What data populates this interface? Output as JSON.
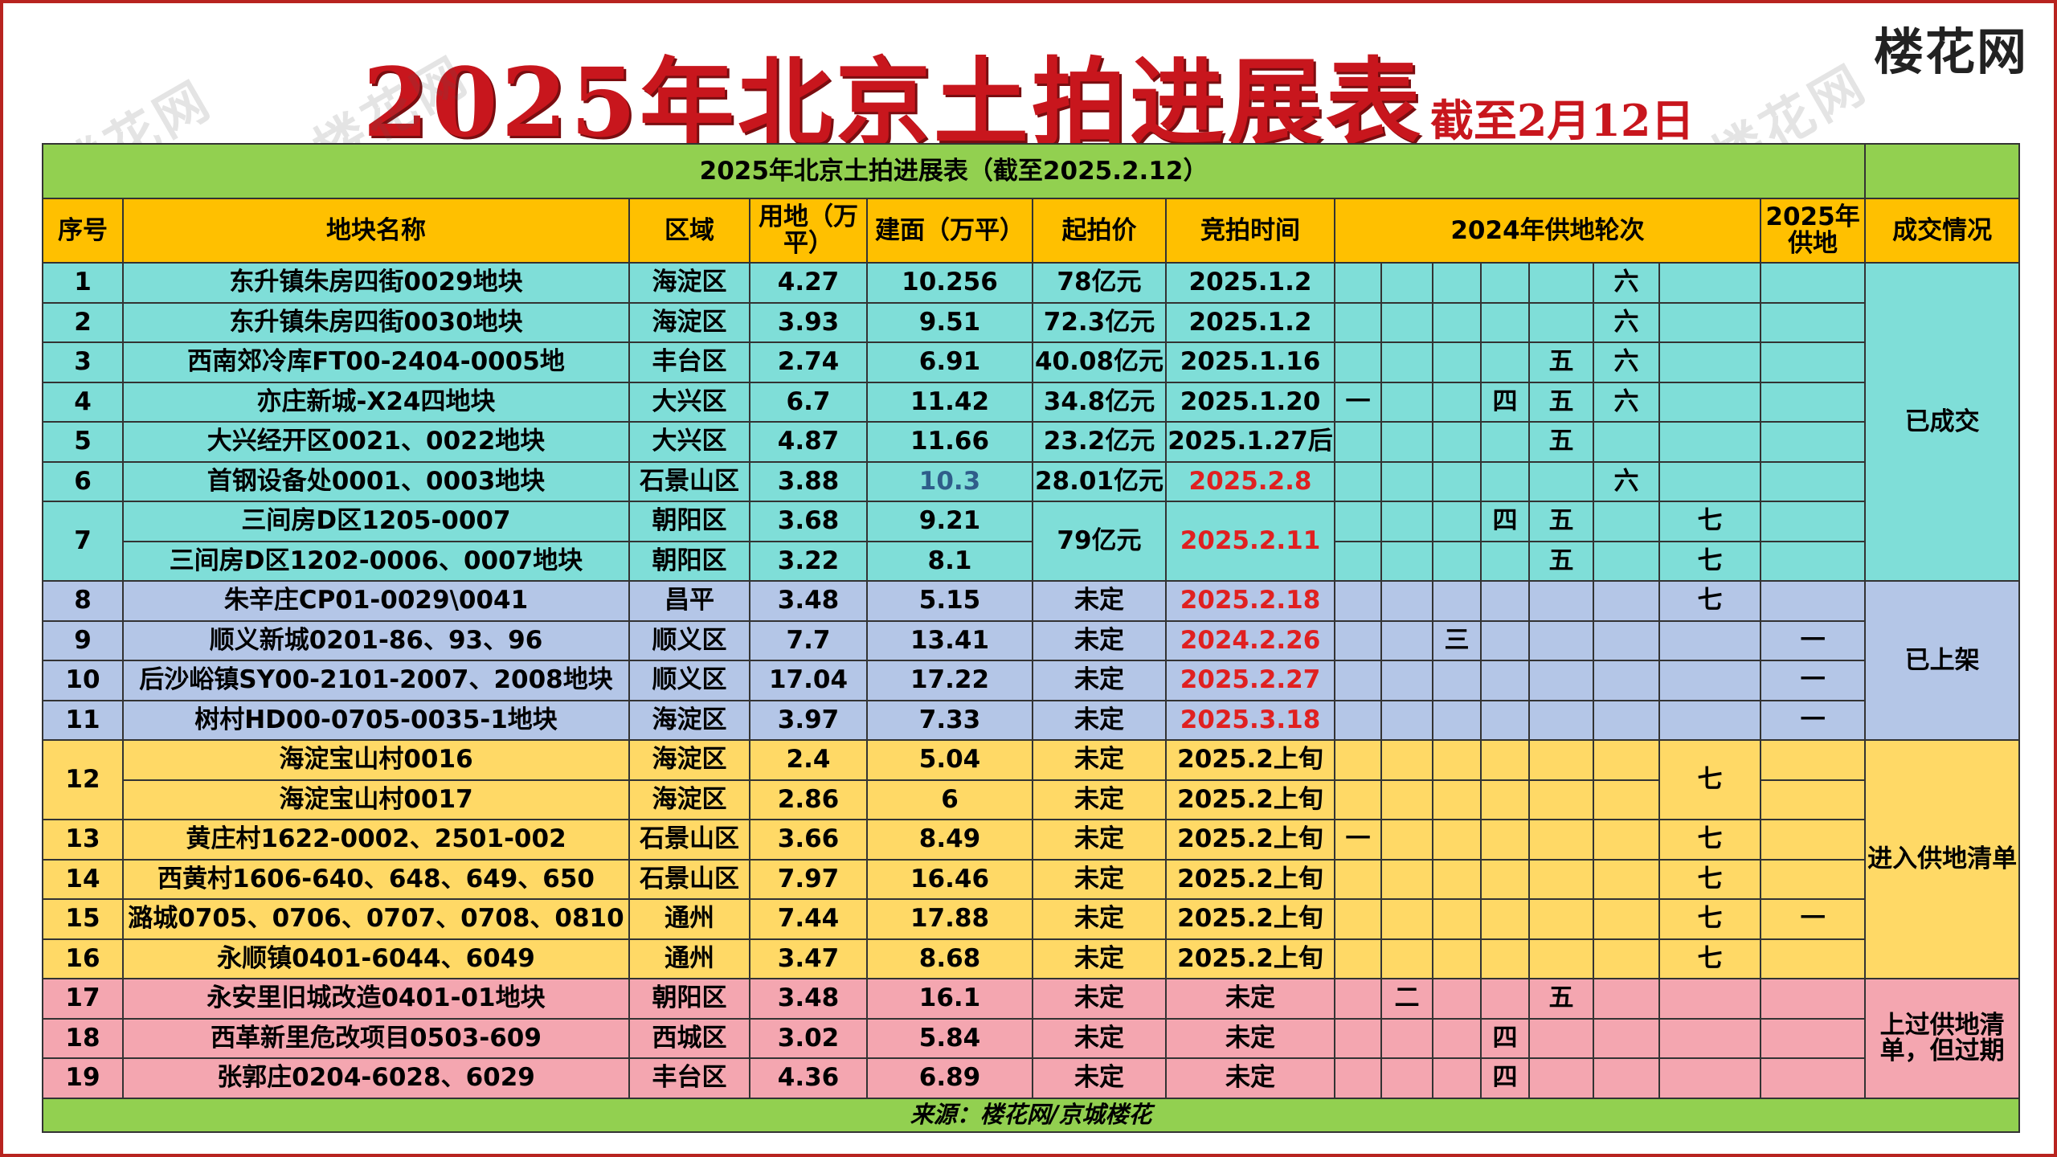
{
  "title": {
    "main": "2025年北京土拍进展表",
    "sub": "截至2月12日"
  },
  "brand": "楼花网",
  "table": {
    "caption": "2025年北京土拍进展表（截至2025.2.12）",
    "headers": {
      "no": "序号",
      "name": "地块名称",
      "district": "区域",
      "land_area": "用地（万平）",
      "build_area": "建面（万平）",
      "start_price": "起拍价",
      "auction_time": "竞拍时间",
      "supply_2024": "2024年供地轮次",
      "supply_2025": "2025年供地",
      "status": "成交情况"
    },
    "rows": [
      {
        "no": "1",
        "name": "东升镇朱房四街0029地块",
        "district": "海淀区",
        "land": "4.27",
        "build": "10.256",
        "price": "78亿元",
        "time": "2025.1.2",
        "r": [
          "",
          "",
          "",
          "",
          "",
          "六"
        ],
        "s25": ""
      },
      {
        "no": "2",
        "name": "东升镇朱房四街0030地块",
        "district": "海淀区",
        "land": "3.93",
        "build": "9.51",
        "price": "72.3亿元",
        "time": "2025.1.2",
        "r": [
          "",
          "",
          "",
          "",
          "",
          "六"
        ],
        "s25": ""
      },
      {
        "no": "3",
        "name": "西南郊冷库FT00-2404-0005地",
        "district": "丰台区",
        "land": "2.74",
        "build": "6.91",
        "price": "40.08亿元",
        "time": "2025.1.16",
        "r": [
          "",
          "",
          "",
          "",
          "五",
          "六"
        ],
        "s25": ""
      },
      {
        "no": "4",
        "name": "亦庄新城-X24四地块",
        "district": "大兴区",
        "land": "6.7",
        "build": "11.42",
        "price": "34.8亿元",
        "time": "2025.1.20",
        "r": [
          "一",
          "",
          "",
          "四",
          "五",
          "六"
        ],
        "s25": ""
      },
      {
        "no": "5",
        "name": "大兴经开区0021、0022地块",
        "district": "大兴区",
        "land": "4.87",
        "build": "11.66",
        "price": "23.2亿元",
        "time": "2025.1.27后",
        "r": [
          "",
          "",
          "",
          "",
          "五",
          ""
        ],
        "s25": ""
      },
      {
        "no": "6",
        "name": "首钢设备处0001、0003地块",
        "district": "石景山区",
        "land": "3.88",
        "build": "10.3",
        "price": "28.01亿元",
        "time": "2025.2.8",
        "r": [
          "",
          "",
          "",
          "",
          "",
          "六"
        ],
        "s25": ""
      },
      {
        "no": "7",
        "name": "三间房D区1205-0007",
        "district": "朝阳区",
        "land": "3.68",
        "build": "9.21",
        "price": "79亿元",
        "time": "2025.2.11",
        "r": [
          "",
          "",
          "",
          "四",
          "五",
          ""
        ],
        "r7": "七",
        "s25": ""
      },
      {
        "no": "",
        "name": "三间房D区1202-0006、0007地块",
        "district": "朝阳区",
        "land": "3.22",
        "build": "8.1",
        "price": "",
        "time": "",
        "r": [
          "",
          "",
          "",
          "",
          "五",
          ""
        ],
        "r7": "七",
        "s25": ""
      },
      {
        "no": "8",
        "name": "朱辛庄CP01-0029\\0041",
        "district": "昌平",
        "land": "3.48",
        "build": "5.15",
        "price": "未定",
        "time": "2025.2.18",
        "r": [
          "",
          "",
          "",
          "",
          "",
          ""
        ],
        "r7": "七",
        "s25": ""
      },
      {
        "no": "9",
        "name": "顺义新城0201-86、93、96",
        "district": "顺义区",
        "land": "7.7",
        "build": "13.41",
        "price": "未定",
        "time": "2024.2.26",
        "r": [
          "",
          "",
          "三",
          "",
          "",
          ""
        ],
        "r7": "",
        "s25": "一"
      },
      {
        "no": "10",
        "name": "后沙峪镇SY00-2101-2007、2008地块",
        "district": "顺义区",
        "land": "17.04",
        "build": "17.22",
        "price": "未定",
        "time": "2025.2.27",
        "r": [
          "",
          "",
          "",
          "",
          "",
          ""
        ],
        "r7": "",
        "s25": "一"
      },
      {
        "no": "11",
        "name": "树村HD00-0705-0035-1地块",
        "district": "海淀区",
        "land": "3.97",
        "build": "7.33",
        "price": "未定",
        "time": "2025.3.18",
        "r": [
          "",
          "",
          "",
          "",
          "",
          ""
        ],
        "r7": "",
        "s25": "一"
      },
      {
        "no": "12",
        "name": "海淀宝山村0016",
        "district": "海淀区",
        "land": "2.4",
        "build": "5.04",
        "price": "未定",
        "time": "2025.2上旬",
        "r": [
          "",
          "",
          "",
          "",
          "",
          ""
        ],
        "r7": "七",
        "s25": ""
      },
      {
        "no": "",
        "name": "海淀宝山村0017",
        "district": "海淀区",
        "land": "2.86",
        "build": "6",
        "price": "未定",
        "time": "2025.2上旬",
        "r": [
          "",
          "",
          "",
          "",
          "",
          ""
        ],
        "r7": "",
        "s25": ""
      },
      {
        "no": "13",
        "name": "黄庄村1622-0002、2501-002",
        "district": "石景山区",
        "land": "3.66",
        "build": "8.49",
        "price": "未定",
        "time": "2025.2上旬",
        "r": [
          "一",
          "",
          "",
          "",
          "",
          ""
        ],
        "r7": "七",
        "s25": ""
      },
      {
        "no": "14",
        "name": "西黄村1606-640、648、649、650",
        "district": "石景山区",
        "land": "7.97",
        "build": "16.46",
        "price": "未定",
        "time": "2025.2上旬",
        "r": [
          "",
          "",
          "",
          "",
          "",
          ""
        ],
        "r7": "七",
        "s25": ""
      },
      {
        "no": "15",
        "name": "潞城0705、0706、0707、0708、0810",
        "district": "通州",
        "land": "7.44",
        "build": "17.88",
        "price": "未定",
        "time": "2025.2上旬",
        "r": [
          "",
          "",
          "",
          "",
          "",
          ""
        ],
        "r7": "七",
        "s25": "一"
      },
      {
        "no": "16",
        "name": "永顺镇0401-6044、6049",
        "district": "通州",
        "land": "3.47",
        "build": "8.68",
        "price": "未定",
        "time": "2025.2上旬",
        "r": [
          "",
          "",
          "",
          "",
          "",
          ""
        ],
        "r7": "七",
        "s25": ""
      },
      {
        "no": "17",
        "name": "永安里旧城改造0401-01地块",
        "district": "朝阳区",
        "land": "3.48",
        "build": "16.1",
        "price": "未定",
        "time": "未定",
        "r": [
          "",
          "二",
          "",
          "",
          "五",
          ""
        ],
        "r7": "",
        "s25": ""
      },
      {
        "no": "18",
        "name": "西革新里危改项目0503-609",
        "district": "西城区",
        "land": "3.02",
        "build": "5.84",
        "price": "未定",
        "time": "未定",
        "r": [
          "",
          "",
          "",
          "四",
          "",
          ""
        ],
        "r7": "",
        "s25": ""
      },
      {
        "no": "19",
        "name": "张郭庄0204-6028、6029",
        "district": "丰台区",
        "land": "4.36",
        "build": "6.89",
        "price": "未定",
        "time": "未定",
        "r": [
          "",
          "",
          "",
          "四",
          "",
          ""
        ],
        "r7": "",
        "s25": ""
      }
    ],
    "status": {
      "sold": "已成交",
      "listed": "已上架",
      "in_list": "进入供地清单",
      "expired": "上过供地清单，但过期"
    },
    "footer": "来源：楼花网/京城楼花"
  },
  "colors": {
    "red_text": "#e02020",
    "cyan": "#7fded8",
    "blue": "#b4c6e7",
    "yellow": "#ffd966",
    "pink": "#f4a6b0",
    "green": "#92d050",
    "orange": "#ffc000"
  }
}
